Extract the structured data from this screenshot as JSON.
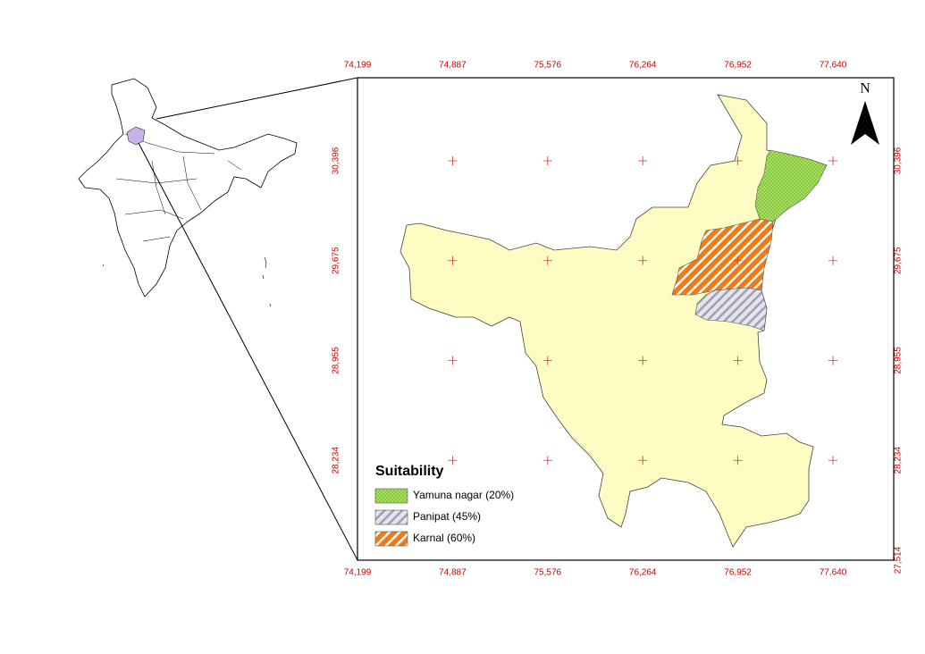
{
  "map": {
    "north_label": "N",
    "x_labels": [
      "74,199",
      "74,887",
      "75,576",
      "76,264",
      "76,952",
      "77,640"
    ],
    "y_labels": [
      "30,396",
      "29,675",
      "28,955",
      "28,234",
      "27,514"
    ],
    "legend": {
      "title": "Suitability",
      "items": [
        {
          "label": "Yamuna nagar (20%)"
        },
        {
          "label": "Panipat (45%)"
        },
        {
          "label": "Karnal (60%)"
        }
      ]
    }
  }
}
